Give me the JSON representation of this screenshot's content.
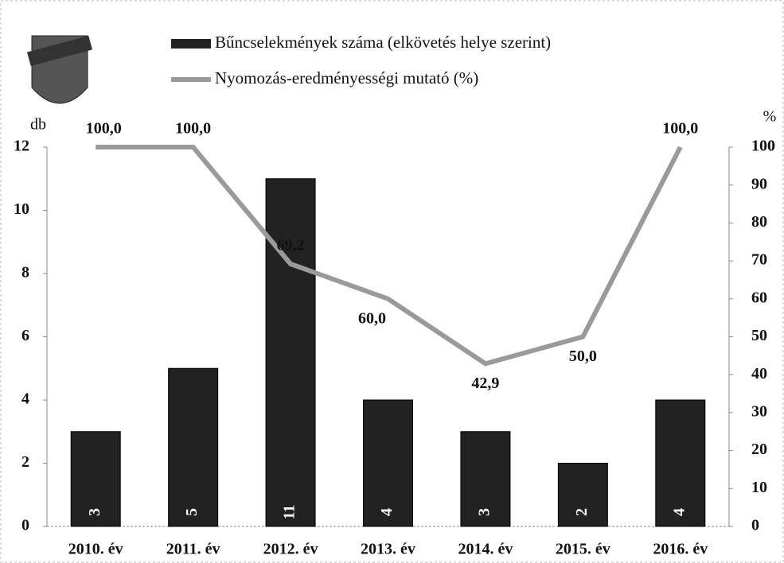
{
  "chart_data": {
    "type": "bar",
    "categories": [
      "2010. év",
      "2011. év",
      "2012. év",
      "2013. év",
      "2014. év",
      "2015. év",
      "2016. év"
    ],
    "series": [
      {
        "name": "Bűncselekmények száma (elkövetés helye szerint)",
        "type": "bar",
        "color": "#222222",
        "values": [
          3,
          5,
          11,
          4,
          3,
          2,
          4
        ]
      },
      {
        "name": "Nyomozás-eredményességi mutató (%)",
        "type": "line",
        "axis": "y2",
        "color": "#9a9a9a",
        "values": [
          100.0,
          100.0,
          69.2,
          60.0,
          42.9,
          50.0,
          100.0
        ],
        "value_labels": [
          "100,0",
          "100,0",
          "69,2",
          "60,0",
          "42,9",
          "50,0",
          "100,0"
        ]
      }
    ],
    "y_label": "db",
    "y2_label": "%",
    "ylim": [
      0,
      12
    ],
    "yticks": [
      0,
      2,
      4,
      6,
      8,
      10,
      12
    ],
    "y2lim": [
      0,
      100
    ],
    "y2ticks": [
      0,
      10,
      20,
      30,
      40,
      50,
      60,
      70,
      80,
      90,
      100
    ]
  }
}
